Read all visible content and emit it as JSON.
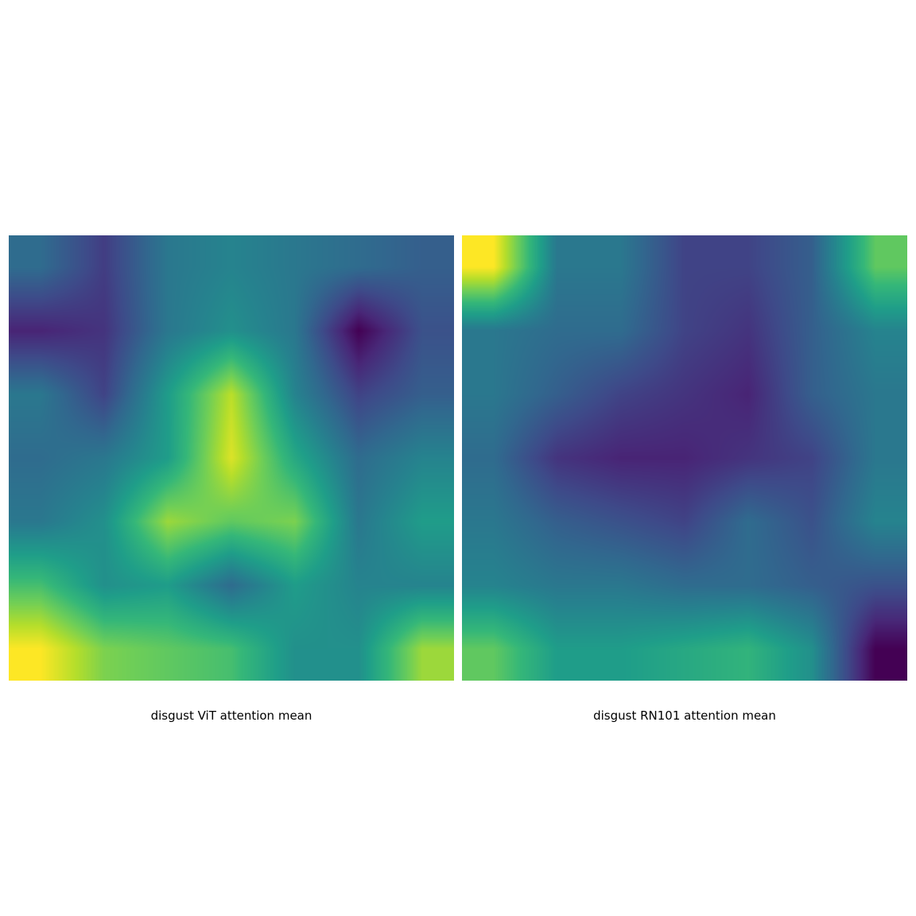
{
  "chart_data": [
    {
      "type": "heatmap",
      "title": "disgust ViT attention mean",
      "colormap": "viridis",
      "grid": false,
      "axes": "off",
      "values": [
        [
          0.35,
          0.18,
          0.4,
          0.45,
          0.4,
          0.35,
          0.3
        ],
        [
          0.1,
          0.15,
          0.4,
          0.5,
          0.4,
          0.0,
          0.25
        ],
        [
          0.4,
          0.2,
          0.55,
          0.9,
          0.45,
          0.2,
          0.3
        ],
        [
          0.35,
          0.4,
          0.55,
          0.95,
          0.6,
          0.35,
          0.45
        ],
        [
          0.4,
          0.5,
          0.85,
          0.75,
          0.8,
          0.4,
          0.55
        ],
        [
          0.7,
          0.5,
          0.55,
          0.35,
          0.55,
          0.45,
          0.45
        ],
        [
          1.0,
          0.8,
          0.75,
          0.7,
          0.5,
          0.5,
          0.85
        ]
      ]
    },
    {
      "type": "heatmap",
      "title": "disgust RN101 attention mean",
      "colormap": "viridis",
      "grid": false,
      "axes": "off",
      "values": [
        [
          1.0,
          0.4,
          0.4,
          0.2,
          0.2,
          0.3,
          0.75
        ],
        [
          0.4,
          0.35,
          0.35,
          0.2,
          0.15,
          0.3,
          0.45
        ],
        [
          0.4,
          0.3,
          0.2,
          0.15,
          0.1,
          0.3,
          0.4
        ],
        [
          0.35,
          0.15,
          0.1,
          0.1,
          0.15,
          0.2,
          0.4
        ],
        [
          0.4,
          0.3,
          0.25,
          0.2,
          0.35,
          0.25,
          0.45
        ],
        [
          0.45,
          0.4,
          0.4,
          0.35,
          0.35,
          0.3,
          0.25
        ],
        [
          0.75,
          0.55,
          0.55,
          0.6,
          0.65,
          0.5,
          0.0
        ]
      ]
    }
  ]
}
